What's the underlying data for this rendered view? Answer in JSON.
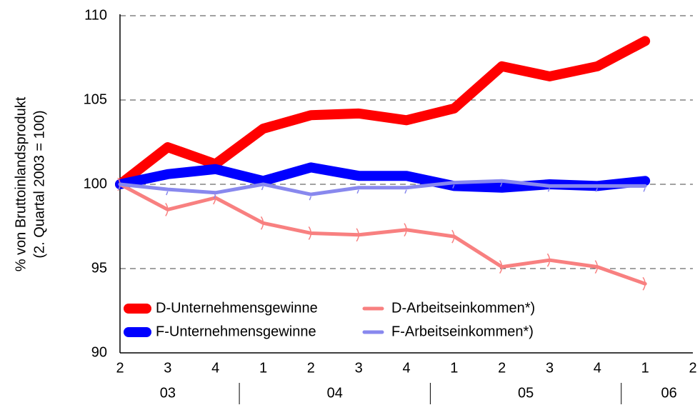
{
  "chart_data": {
    "type": "line",
    "ylabel": [
      "% von Bruttoinlandsprodukt",
      "(2. Quartal 2003 = 100)"
    ],
    "categories": [
      "2",
      "3",
      "4",
      "1",
      "2",
      "3",
      "4",
      "1",
      "2",
      "3",
      "4",
      "1",
      "2"
    ],
    "x_groups": [
      "03",
      "04",
      "05",
      "06"
    ],
    "ylim": [
      90,
      110
    ],
    "yticks": [
      90,
      95,
      100,
      105,
      110
    ],
    "grid": true,
    "legend": "lower left",
    "series": [
      {
        "name": "D-Unternehmensgewinne",
        "color": "#ff0000",
        "values": [
          100,
          102.2,
          101.2,
          103.3,
          104.1,
          104.2,
          103.8,
          104.5,
          107.0,
          106.4,
          107.0,
          108.5,
          null
        ]
      },
      {
        "name": "F-Unternehmensgewinne",
        "color": "#0000ff",
        "values": [
          100,
          100.6,
          100.9,
          100.2,
          101.0,
          100.5,
          100.5,
          99.9,
          99.8,
          100.0,
          99.9,
          100.2,
          null
        ]
      },
      {
        "name": "D-Arbeitseinkommen*)",
        "color": "#f88080",
        "values": [
          100,
          98.5,
          99.2,
          97.7,
          97.1,
          97.0,
          97.3,
          96.9,
          95.1,
          95.5,
          95.1,
          94.1,
          null
        ]
      },
      {
        "name": "F-Arbeitseinkommen*)",
        "color": "#8888ee",
        "values": [
          100,
          99.7,
          99.5,
          100.0,
          99.4,
          99.8,
          99.8,
          100.1,
          100.2,
          99.9,
          99.9,
          99.9,
          null
        ]
      }
    ]
  }
}
